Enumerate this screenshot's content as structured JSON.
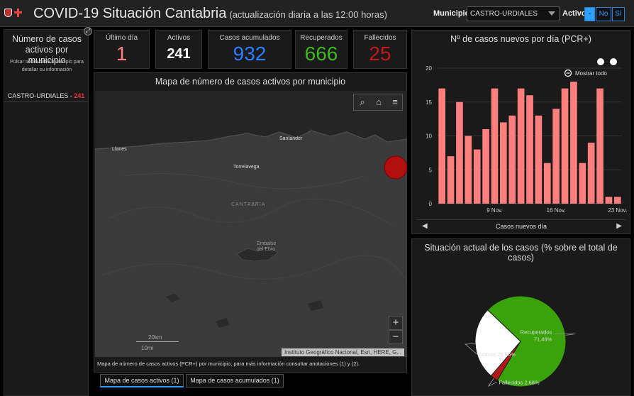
{
  "header": {
    "title": "COVID-19 Situación Cantabria",
    "subtitle": "(actualización diaria a las 12:00 horas)",
    "municipio_label": "Municipio",
    "municipio_value": "CASTRO-URDIALES",
    "activo_label": "Activo",
    "activo_options": [
      "-",
      "No",
      "Sí"
    ]
  },
  "left_panel": {
    "title": "Número de casos activos por municipio",
    "hint": "Pulsar sobre cada municipio para detallar su información",
    "items": [
      {
        "name": "CASTRO-URDIALES - ",
        "count": "241"
      }
    ]
  },
  "kpis": {
    "ultimo_dia": {
      "label": "Último día",
      "value": "1",
      "color": "#ff7f7f"
    },
    "activos": {
      "label": "Activos",
      "value": "241",
      "color": "#ffffff"
    },
    "acumulados": {
      "label": "Casos acumulados",
      "value": "932",
      "color": "#2a7fff"
    },
    "recuperados": {
      "label": "Recuperados",
      "value": "666",
      "color": "#3cb81c"
    },
    "fallecidos": {
      "label": "Fallecidos",
      "value": "25",
      "color": "#c01818"
    }
  },
  "map": {
    "title": "Mapa de número de casos activos por municipio",
    "labels": {
      "llanes": "Llanes",
      "santander": "Santander",
      "torrelavega": "Torrelavega",
      "cantabria": "CANTABRIA",
      "embalse": "Embalse del Ebro"
    },
    "scale_km": "20km",
    "scale_mi": "10mi",
    "attribution": "Instituto Geográfico Nacional, Esri, HERE, G...",
    "note": "Mapa de número de casos activos (PCR+) por municipio, para más información consultar anotaciones (1) y (2).",
    "zoom_in": "+",
    "zoom_out": "−",
    "tabs": [
      "Mapa de casos activos (1)",
      "Mapa de casos acumulados (1)"
    ],
    "icons": {
      "search": "search-icon",
      "home": "home-icon",
      "list": "list-icon"
    }
  },
  "bar_panel": {
    "title": "Nº de casos nuevos por día (PCR+)",
    "show_all": "Mostrar todo",
    "footer": "Casos nuevos día"
  },
  "pie_panel": {
    "title": "Situación actual de los casos (% sobre el total de casos)"
  },
  "chart_data": [
    {
      "type": "bar",
      "title": "Nº de casos nuevos por día (PCR+)",
      "xlabel": "Casos nuevos día",
      "ylabel": "",
      "ylim": [
        0,
        20
      ],
      "yticks": [
        0,
        5,
        10,
        15,
        20
      ],
      "xtick_labels": [
        {
          "index": 6.5,
          "label": "9 Nov."
        },
        {
          "index": 13.5,
          "label": "16 Nov."
        },
        {
          "index": 20.5,
          "label": "23 Nov."
        }
      ],
      "values": [
        17,
        7,
        15,
        10,
        8,
        11,
        17,
        12,
        13,
        17,
        16,
        13,
        6,
        14,
        17,
        18,
        6,
        9,
        17,
        1,
        1
      ],
      "color": "#ff7f7f"
    },
    {
      "type": "pie",
      "title": "Situación actual de los casos (% sobre el total de casos)",
      "slices": [
        {
          "label": "Recuperados",
          "value": 71.46,
          "text": "71,46%",
          "color": "#3aa30a"
        },
        {
          "label": "Fallecidos",
          "value": 2.68,
          "text": "2,68%",
          "color": "#b31b1b"
        },
        {
          "label": "Activos",
          "value": 25.86,
          "text": "25,86%",
          "color": "#ffffff"
        }
      ]
    }
  ]
}
